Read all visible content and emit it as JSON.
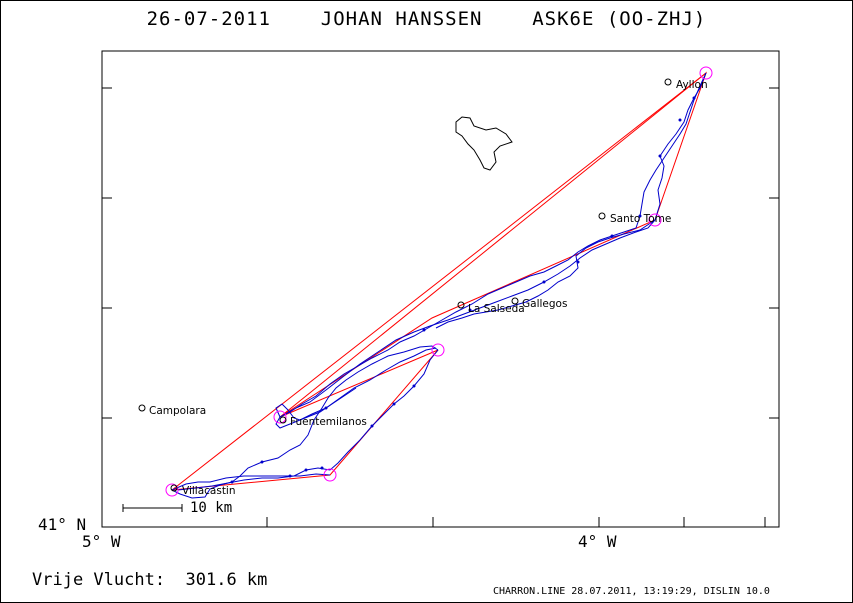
{
  "header": {
    "title": "26-07-2011    JOHAN HANSSEN    ASK6E (OO-ZHJ)"
  },
  "axes": {
    "lat_label": "41° N",
    "lon_left_label": "5° W",
    "lon_right_label": "4° W"
  },
  "footer": {
    "distance_label": "Vrije Vlucht:  301.6 km",
    "program_line": "CHARRON.LINE 28.07.2011, 13:19:29, DISLIN 10.0"
  },
  "scale_bar": {
    "label": "10 km"
  },
  "places": [
    {
      "name": "Ayllon"
    },
    {
      "name": "Santo Tome"
    },
    {
      "name": "Gallegos"
    },
    {
      "name": "La Salseda"
    },
    {
      "name": "Campolara"
    },
    {
      "name": "Fuentemilanos"
    },
    {
      "name": "Villacastin"
    }
  ],
  "colors": {
    "frame": "#000000",
    "task_line": "#ff0000",
    "track": "#0000cc",
    "turnpoint": "#ff00ff",
    "background": "#ffffff"
  }
}
